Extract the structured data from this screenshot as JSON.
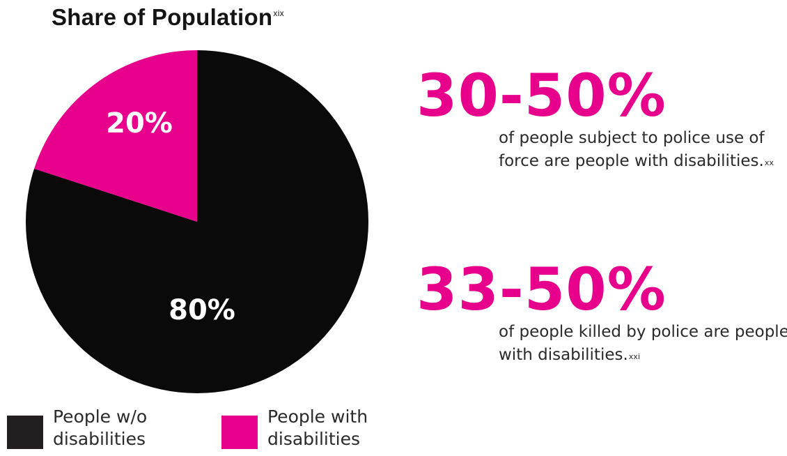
{
  "chart_data": {
    "type": "pie",
    "title": "Share of Population",
    "title_footnote": "xix",
    "slices": [
      {
        "name": "People w/o disabilities",
        "value": 80,
        "label": "80%",
        "color": "#0a0a0a"
      },
      {
        "name": "People with disabilities",
        "value": 20,
        "label": "20%",
        "color": "#e6008b"
      }
    ],
    "legend": [
      {
        "label": "People w/o disabilities",
        "color": "#231f20"
      },
      {
        "label": "People with disabilities",
        "color": "#e6008b"
      }
    ],
    "legend_position": "bottom"
  },
  "stats": [
    {
      "value": "30-50%",
      "description": "of people subject to police use of force are people with disabilities.",
      "footnote": "xx"
    },
    {
      "value": "33-50%",
      "description": "of people killed by police are people with disabilities.",
      "footnote": "xxi"
    }
  ],
  "colors": {
    "accent": "#e6008b",
    "dark": "#0a0a0a",
    "text": "#2a2a2a"
  }
}
